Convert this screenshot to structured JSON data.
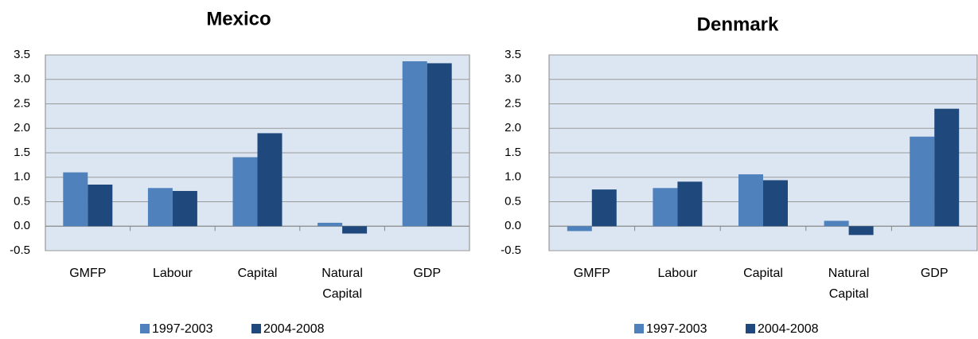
{
  "chart_data": [
    {
      "type": "bar",
      "title": "Mexico",
      "categories": [
        "GMFP",
        "Labour",
        "Capital",
        "Natural Capital",
        "GDP"
      ],
      "series": [
        {
          "name": "1997-2003",
          "color": "#4f81bd",
          "values": [
            1.1,
            0.78,
            1.41,
            0.07,
            3.37
          ]
        },
        {
          "name": "2004-2008",
          "color": "#1f497d",
          "values": [
            0.85,
            0.72,
            1.9,
            -0.15,
            3.33
          ]
        }
      ],
      "ylim": [
        -0.5,
        3.5
      ],
      "yticks": [
        -0.5,
        {
          "value": 0,
          "label": "0.0"
        },
        0.5,
        {
          "value": 1,
          "label": "1.0"
        },
        1.5,
        {
          "value": 2,
          "label": "2.0"
        },
        2.5,
        {
          "value": 3,
          "label": "3.0"
        },
        3.5
      ],
      "grid": true,
      "legend": "bottom"
    },
    {
      "type": "bar",
      "title": "Denmark",
      "categories": [
        "GMFP",
        "Labour",
        "Capital",
        "Natural Capital",
        "GDP"
      ],
      "series": [
        {
          "name": "1997-2003",
          "color": "#4f81bd",
          "values": [
            -0.1,
            0.78,
            1.06,
            0.11,
            1.83
          ]
        },
        {
          "name": "2004-2008",
          "color": "#1f497d",
          "values": [
            0.75,
            0.91,
            0.94,
            -0.18,
            2.4
          ]
        }
      ],
      "ylim": [
        -0.5,
        3.5
      ],
      "yticks": [
        -0.5,
        {
          "value": 0,
          "label": "0.0"
        },
        0.5,
        {
          "value": 1,
          "label": "1.0"
        },
        1.5,
        {
          "value": 2,
          "label": "2.0"
        },
        2.5,
        {
          "value": 3,
          "label": "3.0"
        },
        3.5
      ],
      "grid": true,
      "legend": "bottom"
    }
  ]
}
